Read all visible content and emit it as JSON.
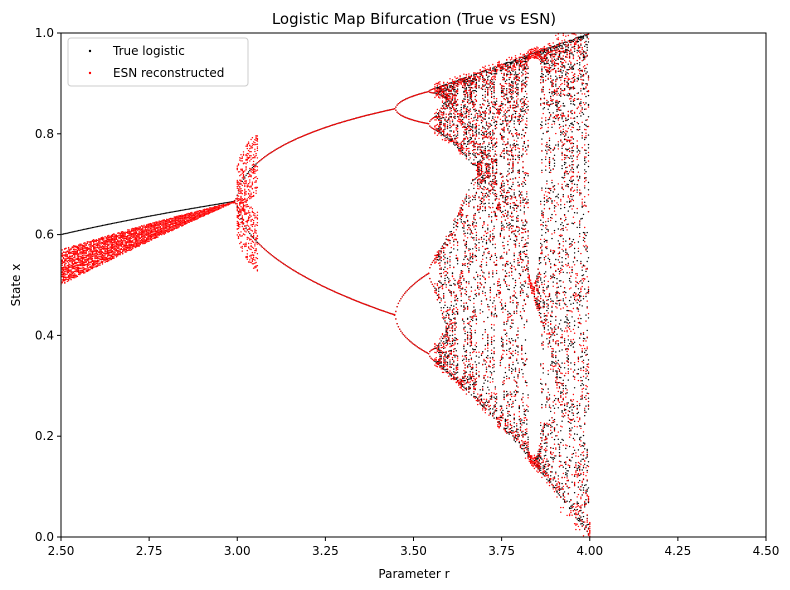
{
  "chart_data": {
    "type": "scatter",
    "title": "Logistic Map Bifurcation (True vs ESN)",
    "xlabel": "Parameter r",
    "ylabel": "State x",
    "xlim": [
      2.5,
      4.5
    ],
    "ylim": [
      0.0,
      1.0
    ],
    "xticks": [
      "2.50",
      "2.75",
      "3.00",
      "3.25",
      "3.50",
      "3.75",
      "4.00",
      "4.25",
      "4.50"
    ],
    "yticks": [
      "0.0",
      "0.2",
      "0.4",
      "0.6",
      "0.8",
      "1.0"
    ],
    "grid": false,
    "legend_position": "top-left",
    "series": [
      {
        "name": "True logistic",
        "color": "#000000",
        "points": [
          [
            2.5,
            0.6
          ],
          [
            2.6,
            0.615
          ],
          [
            2.7,
            0.63
          ],
          [
            2.8,
            0.643
          ],
          [
            2.9,
            0.655
          ],
          [
            2.98,
            0.664
          ],
          [
            3.05,
            0.72
          ],
          [
            3.05,
            0.595
          ],
          [
            3.15,
            0.78
          ],
          [
            3.15,
            0.54
          ],
          [
            3.25,
            0.812
          ],
          [
            3.25,
            0.495
          ],
          [
            3.35,
            0.835
          ],
          [
            3.35,
            0.465
          ],
          [
            3.44,
            0.85
          ],
          [
            3.44,
            0.44
          ],
          [
            3.5,
            0.875
          ],
          [
            3.5,
            0.826
          ],
          [
            3.5,
            0.501
          ],
          [
            3.5,
            0.383
          ],
          [
            3.55,
            0.886
          ],
          [
            3.55,
            0.812
          ],
          [
            3.55,
            0.541
          ],
          [
            3.55,
            0.355
          ],
          [
            3.6,
            0.9
          ],
          [
            3.6,
            0.65
          ],
          [
            3.6,
            0.32
          ],
          [
            3.65,
            0.91
          ],
          [
            3.65,
            0.7
          ],
          [
            3.65,
            0.3
          ],
          [
            3.7,
            0.925
          ],
          [
            3.7,
            0.74
          ],
          [
            3.7,
            0.25
          ],
          [
            3.75,
            0.935
          ],
          [
            3.75,
            0.6
          ],
          [
            3.75,
            0.22
          ],
          [
            3.8,
            0.95
          ],
          [
            3.8,
            0.45
          ],
          [
            3.8,
            0.18
          ],
          [
            3.84,
            0.96
          ],
          [
            3.84,
            0.49
          ],
          [
            3.84,
            0.15
          ],
          [
            3.9,
            0.97
          ],
          [
            3.9,
            0.5
          ],
          [
            3.9,
            0.1
          ],
          [
            3.95,
            0.985
          ],
          [
            3.95,
            0.3
          ],
          [
            3.95,
            0.05
          ],
          [
            4.0,
            1.0
          ],
          [
            4.0,
            0.5
          ],
          [
            4.0,
            0.0
          ]
        ]
      },
      {
        "name": "ESN reconstructed",
        "color": "#ff0000",
        "points": [
          [
            2.5,
            0.54
          ],
          [
            2.5,
            0.49
          ],
          [
            2.6,
            0.56
          ],
          [
            2.7,
            0.59
          ],
          [
            2.8,
            0.61
          ],
          [
            2.9,
            0.635
          ],
          [
            2.98,
            0.655
          ],
          [
            3.05,
            0.72
          ],
          [
            3.05,
            0.595
          ],
          [
            3.15,
            0.78
          ],
          [
            3.15,
            0.54
          ],
          [
            3.25,
            0.812
          ],
          [
            3.25,
            0.495
          ],
          [
            3.35,
            0.835
          ],
          [
            3.35,
            0.465
          ],
          [
            3.44,
            0.85
          ],
          [
            3.44,
            0.44
          ],
          [
            3.5,
            0.875
          ],
          [
            3.5,
            0.826
          ],
          [
            3.5,
            0.501
          ],
          [
            3.5,
            0.383
          ],
          [
            3.6,
            0.9
          ],
          [
            3.6,
            0.65
          ],
          [
            3.6,
            0.32
          ],
          [
            3.7,
            0.925
          ],
          [
            3.7,
            0.7
          ],
          [
            3.7,
            0.27
          ],
          [
            3.8,
            0.95
          ],
          [
            3.8,
            0.5
          ],
          [
            3.8,
            0.2
          ],
          [
            3.88,
            0.97
          ],
          [
            3.88,
            0.5
          ],
          [
            3.88,
            0.0
          ],
          [
            3.95,
            0.99
          ],
          [
            3.95,
            0.4
          ],
          [
            3.95,
            0.05
          ]
        ]
      }
    ]
  }
}
